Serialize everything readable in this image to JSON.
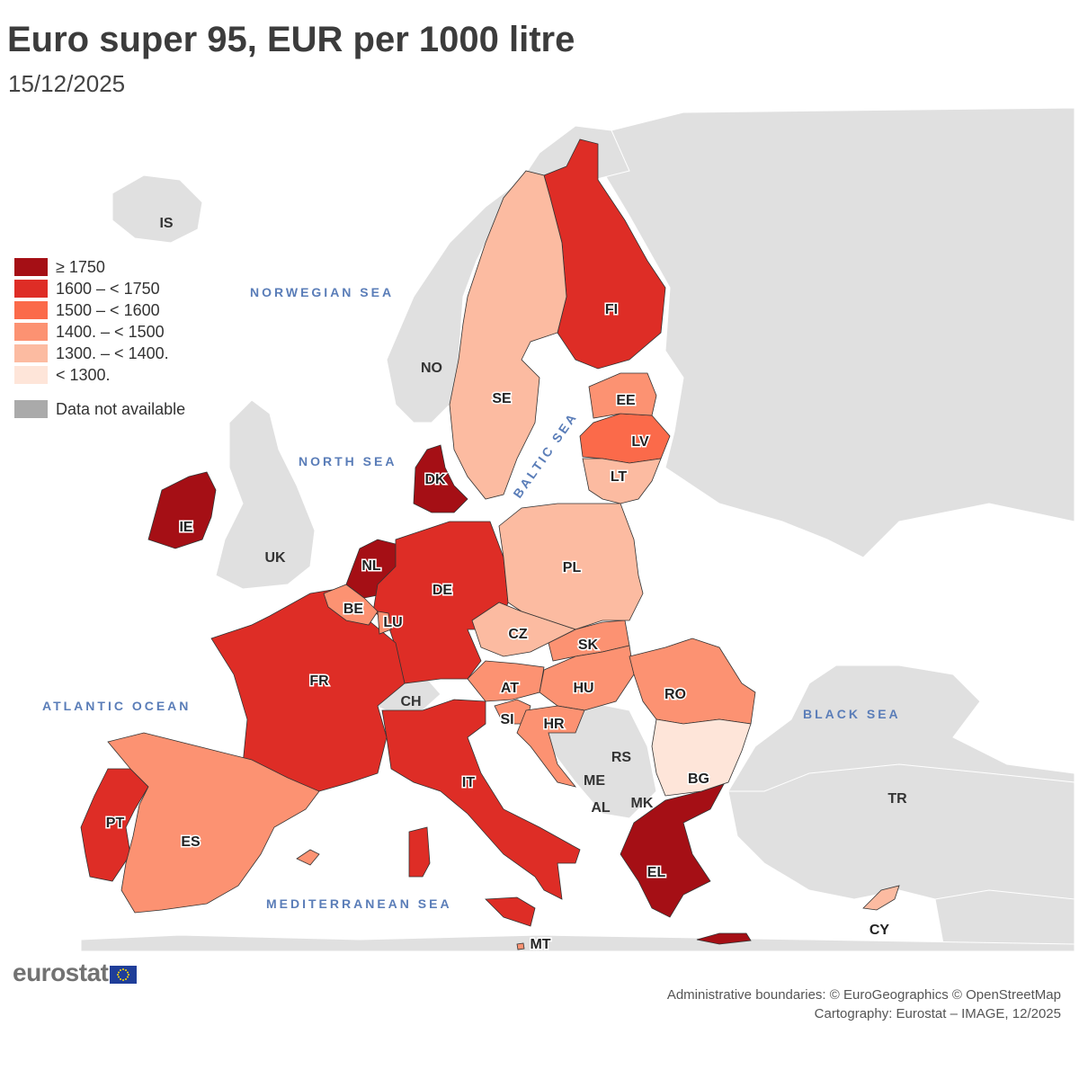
{
  "title": "Euro super 95, EUR per 1000 litre",
  "subtitle": "15/12/2025",
  "seas": {
    "norwegian": "NORWEGIAN SEA",
    "north": "NORTH SEA",
    "baltic": "BALTIC SEA",
    "atlantic": "ATLANTIC OCEAN",
    "black": "BLACK SEA",
    "mediterranean": "MEDITERRANEAN SEA"
  },
  "colors": {
    "ge1750": "#a50f15",
    "c1600": "#de2d26",
    "c1500": "#fb6a4a",
    "c1400": "#fc9272",
    "c1300": "#fcbba1",
    "lt1300": "#fee5d9",
    "na": "#aaaaaa",
    "background_land": "#e0e0e0",
    "sea": "#ffffff"
  },
  "legend": {
    "items": [
      {
        "label": "≥ 1750",
        "color": "#a50f15"
      },
      {
        "label": "1600 – < 1750",
        "color": "#de2d26"
      },
      {
        "label": "1500 – < 1600",
        "color": "#fb6a4a"
      },
      {
        "label": "1400. – < 1500",
        "color": "#fc9272"
      },
      {
        "label": "1300. – < 1400.",
        "color": "#fcbba1"
      },
      {
        "label": "< 1300.",
        "color": "#fee5d9"
      }
    ],
    "na_label": "Data not available",
    "na_color": "#aaaaaa"
  },
  "countries": {
    "IE": {
      "label": "IE",
      "class": "ge1750"
    },
    "NL": {
      "label": "NL",
      "class": "ge1750"
    },
    "DK": {
      "label": "DK",
      "class": "ge1750"
    },
    "EL": {
      "label": "EL",
      "class": "ge1750"
    },
    "FI": {
      "label": "FI",
      "class": "c1600"
    },
    "DE": {
      "label": "DE",
      "class": "c1600"
    },
    "FR": {
      "label": "FR",
      "class": "c1600"
    },
    "IT": {
      "label": "IT",
      "class": "c1600"
    },
    "PT": {
      "label": "PT",
      "class": "c1600"
    },
    "LV": {
      "label": "LV",
      "class": "c1500"
    },
    "EE": {
      "label": "EE",
      "class": "c1400"
    },
    "BE": {
      "label": "BE",
      "class": "c1400"
    },
    "LU": {
      "label": "LU",
      "class": "c1400"
    },
    "SK": {
      "label": "SK",
      "class": "c1400"
    },
    "HU": {
      "label": "HU",
      "class": "c1400"
    },
    "AT": {
      "label": "AT",
      "class": "c1400"
    },
    "SI": {
      "label": "SI",
      "class": "c1400"
    },
    "HR": {
      "label": "HR",
      "class": "c1400"
    },
    "RO": {
      "label": "RO",
      "class": "c1400"
    },
    "ES": {
      "label": "ES",
      "class": "c1400"
    },
    "MT": {
      "label": "MT",
      "class": "c1400"
    },
    "SE": {
      "label": "SE",
      "class": "c1300"
    },
    "LT": {
      "label": "LT",
      "class": "c1300"
    },
    "PL": {
      "label": "PL",
      "class": "c1300"
    },
    "CZ": {
      "label": "CZ",
      "class": "c1300"
    },
    "CY": {
      "label": "CY",
      "class": "c1300"
    },
    "BG": {
      "label": "BG",
      "class": "lt1300"
    }
  },
  "non_eu": {
    "IS": "IS",
    "NO": "NO",
    "UK": "UK",
    "CH": "CH",
    "RS": "RS",
    "ME": "ME",
    "AL": "AL",
    "MK": "MK",
    "TR": "TR"
  },
  "logo": "eurostat",
  "credits": {
    "line1": "Administrative boundaries: © EuroGeographics © OpenStreetMap",
    "line2": "Cartography: Eurostat – IMAGE, 12/2025"
  }
}
